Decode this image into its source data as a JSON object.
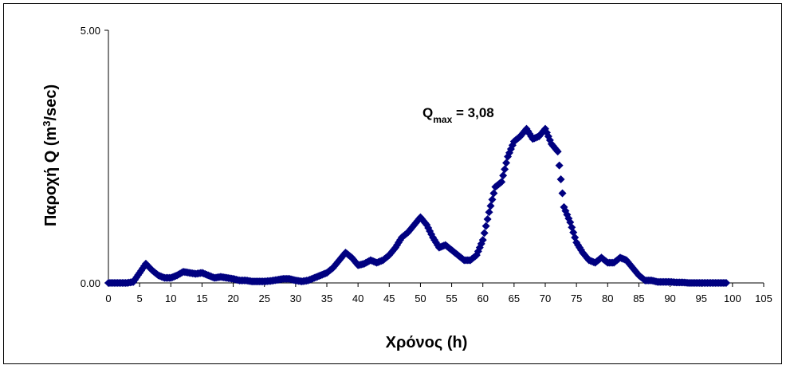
{
  "chart_data": {
    "type": "scatter",
    "title": "",
    "xlabel": "Χρόνος (h)",
    "ylabel_parts": [
      "Παροχή Q (m",
      "3",
      "/sec)"
    ],
    "xlim": [
      0,
      105
    ],
    "ylim": [
      0,
      5
    ],
    "x_ticks": [
      "0",
      "5",
      "10",
      "15",
      "20",
      "25",
      "30",
      "35",
      "40",
      "45",
      "50",
      "55",
      "60",
      "65",
      "70",
      "75",
      "80",
      "85",
      "90",
      "95",
      "100",
      "105"
    ],
    "y_ticks": [
      "0.00",
      "5.00"
    ],
    "grid": false,
    "legend": "none",
    "marker": "diamond",
    "series_color": "#000080",
    "annotation": {
      "label": "Q",
      "subscript": "max",
      "text": " = 3,08",
      "x": 67,
      "y": 3.08
    },
    "series": [
      {
        "points": [
          [
            0,
            0
          ],
          [
            1,
            0
          ],
          [
            2,
            0
          ],
          [
            3,
            0
          ],
          [
            4,
            0.02
          ],
          [
            5,
            0.2
          ],
          [
            6,
            0.38
          ],
          [
            7,
            0.25
          ],
          [
            8,
            0.15
          ],
          [
            9,
            0.1
          ],
          [
            10,
            0.1
          ],
          [
            11,
            0.15
          ],
          [
            12,
            0.22
          ],
          [
            13,
            0.2
          ],
          [
            14,
            0.18
          ],
          [
            15,
            0.2
          ],
          [
            16,
            0.15
          ],
          [
            17,
            0.1
          ],
          [
            18,
            0.12
          ],
          [
            19,
            0.1
          ],
          [
            20,
            0.08
          ],
          [
            21,
            0.05
          ],
          [
            22,
            0.05
          ],
          [
            23,
            0.03
          ],
          [
            24,
            0.03
          ],
          [
            25,
            0.03
          ],
          [
            26,
            0.04
          ],
          [
            27,
            0.06
          ],
          [
            28,
            0.08
          ],
          [
            29,
            0.08
          ],
          [
            30,
            0.05
          ],
          [
            31,
            0.03
          ],
          [
            32,
            0.05
          ],
          [
            33,
            0.1
          ],
          [
            34,
            0.15
          ],
          [
            35,
            0.2
          ],
          [
            36,
            0.3
          ],
          [
            37,
            0.45
          ],
          [
            38,
            0.6
          ],
          [
            39,
            0.5
          ],
          [
            40,
            0.35
          ],
          [
            41,
            0.38
          ],
          [
            42,
            0.45
          ],
          [
            43,
            0.4
          ],
          [
            44,
            0.45
          ],
          [
            45,
            0.55
          ],
          [
            46,
            0.7
          ],
          [
            47,
            0.9
          ],
          [
            48,
            1.0
          ],
          [
            49,
            1.15
          ],
          [
            50,
            1.3
          ],
          [
            51,
            1.15
          ],
          [
            52,
            0.9
          ],
          [
            53,
            0.7
          ],
          [
            54,
            0.75
          ],
          [
            55,
            0.65
          ],
          [
            56,
            0.55
          ],
          [
            57,
            0.45
          ],
          [
            58,
            0.45
          ],
          [
            59,
            0.55
          ],
          [
            60,
            0.85
          ],
          [
            61,
            1.4
          ],
          [
            62,
            1.9
          ],
          [
            63,
            2.0
          ],
          [
            64,
            2.5
          ],
          [
            65,
            2.8
          ],
          [
            66,
            2.9
          ],
          [
            67,
            3.05
          ],
          [
            68,
            2.85
          ],
          [
            69,
            2.9
          ],
          [
            70,
            3.05
          ],
          [
            71,
            2.75
          ],
          [
            72,
            2.6
          ],
          [
            73,
            1.5
          ],
          [
            74,
            1.2
          ],
          [
            75,
            0.8
          ],
          [
            76,
            0.6
          ],
          [
            77,
            0.45
          ],
          [
            78,
            0.4
          ],
          [
            79,
            0.5
          ],
          [
            80,
            0.4
          ],
          [
            81,
            0.4
          ],
          [
            82,
            0.5
          ],
          [
            83,
            0.45
          ],
          [
            84,
            0.3
          ],
          [
            85,
            0.15
          ],
          [
            86,
            0.05
          ],
          [
            87,
            0.05
          ],
          [
            88,
            0.02
          ],
          [
            89,
            0.02
          ],
          [
            90,
            0.02
          ],
          [
            91,
            0.01
          ],
          [
            92,
            0.01
          ],
          [
            93,
            0
          ],
          [
            94,
            0
          ],
          [
            95,
            0
          ],
          [
            96,
            0
          ],
          [
            97,
            0
          ],
          [
            98,
            0
          ],
          [
            99,
            0
          ]
        ]
      }
    ]
  }
}
